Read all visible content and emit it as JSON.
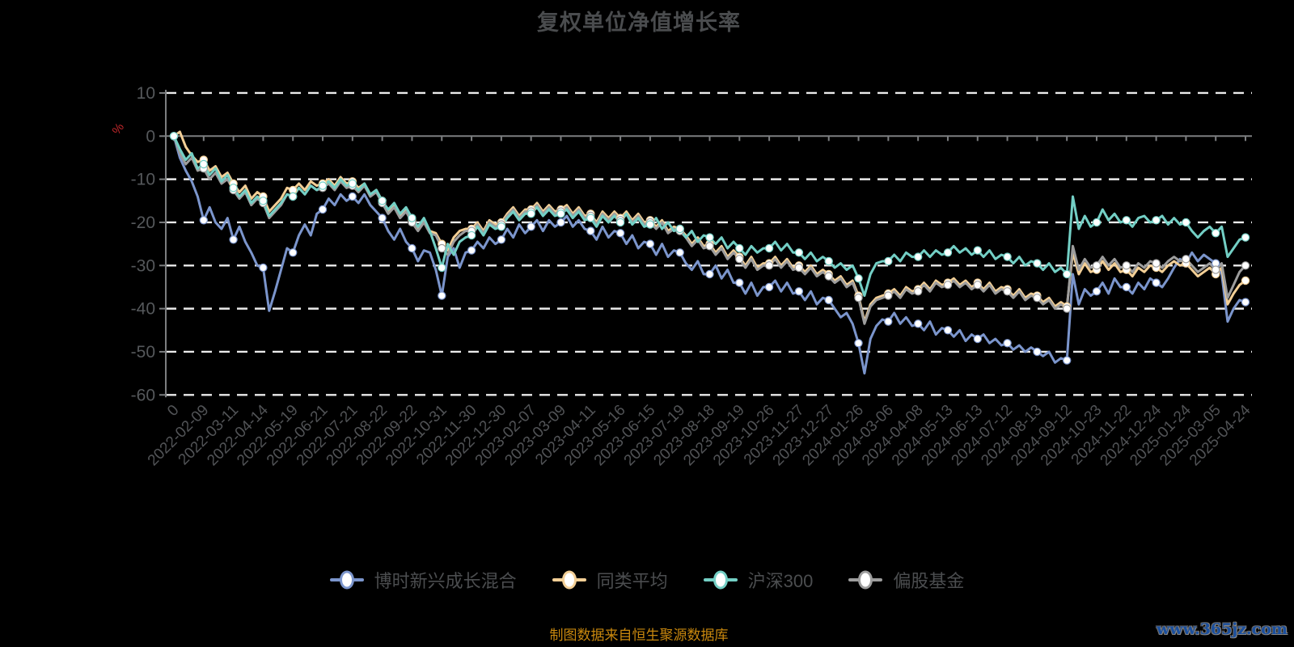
{
  "title": "复权单位净值增长率",
  "footer": {
    "source_note": "制图数据来自恒生聚源数据库",
    "watermark": "www.365jz.com"
  },
  "chart_data": {
    "type": "line",
    "title": "复权单位净值增长率",
    "xlabel": "",
    "ylabel": "%",
    "ylabel_color": "#c0272b",
    "ylim": [
      -60,
      10
    ],
    "y_ticks": [
      10,
      0,
      -10,
      -20,
      -30,
      -40,
      -50,
      -60
    ],
    "grid": "dashed-horizontal-white",
    "legend_position": "bottom",
    "background": "#000000",
    "x_labels": [
      "0",
      "2022-02-09",
      "2022-03-11",
      "2022-04-14",
      "2022-05-19",
      "2022-06-21",
      "2022-07-21",
      "2022-08-22",
      "2022-09-22",
      "2022-10-31",
      "2022-11-30",
      "2022-12-30",
      "2023-02-07",
      "2023-03-09",
      "2023-04-11",
      "2023-05-16",
      "2023-06-15",
      "2023-07-19",
      "2023-08-18",
      "2023-09-19",
      "2023-10-26",
      "2023-11-27",
      "2023-12-27",
      "2024-01-26",
      "2024-03-06",
      "2024-04-08",
      "2024-05-13",
      "2024-06-13",
      "2024-07-12",
      "2024-08-13",
      "2024-09-12",
      "2024-10-23",
      "2024-11-22",
      "2024-12-24",
      "2025-01-24",
      "2025-03-05",
      "2025-04-24"
    ],
    "t_step": 0.2,
    "marker_every": 5,
    "series": [
      {
        "key": "fund",
        "name": "博时新兴成长混合",
        "color": "#7b95cc",
        "values": [
          0,
          -5,
          -8,
          -10.5,
          -14,
          -19.5,
          -16.5,
          -20,
          -21.5,
          -19,
          -24,
          -21,
          -24.5,
          -27,
          -30,
          -30.5,
          -40.5,
          -36,
          -31,
          -26,
          -27,
          -23,
          -20.5,
          -23,
          -18,
          -17,
          -14.5,
          -16,
          -13.5,
          -15,
          -14,
          -15.5,
          -13.5,
          -16,
          -17.5,
          -19,
          -22,
          -24,
          -21.5,
          -24.5,
          -26,
          -29,
          -26.5,
          -27,
          -31,
          -37,
          -28,
          -26,
          -30.5,
          -27,
          -26.5,
          -24.5,
          -26,
          -23.5,
          -25,
          -24,
          -21.5,
          -23.5,
          -20.5,
          -22.5,
          -21,
          -19.5,
          -22,
          -19.5,
          -21,
          -20,
          -18.5,
          -21,
          -19.5,
          -21.5,
          -22,
          -24,
          -21,
          -23.5,
          -22,
          -22.5,
          -25,
          -23,
          -26,
          -24.5,
          -25,
          -27.5,
          -25,
          -28,
          -26.5,
          -27,
          -29.5,
          -31,
          -29,
          -32,
          -32,
          -30,
          -33,
          -31,
          -34,
          -34,
          -36.5,
          -34,
          -37,
          -35,
          -35,
          -33.5,
          -36,
          -34,
          -36.5,
          -36,
          -38,
          -36,
          -39,
          -37.5,
          -38,
          -40,
          -42,
          -41,
          -43.5,
          -48,
          -55,
          -47,
          -44,
          -42.5,
          -43,
          -41,
          -43.5,
          -42,
          -44,
          -43.5,
          -45,
          -43,
          -46,
          -44.5,
          -45,
          -46.5,
          -45,
          -47.5,
          -46,
          -47,
          -46,
          -48,
          -47,
          -48.5,
          -48,
          -49.5,
          -48.5,
          -50,
          -49,
          -50,
          -51,
          -50,
          -52.5,
          -51.5,
          -52,
          -32,
          -39,
          -35.5,
          -37,
          -36,
          -34,
          -36.5,
          -33,
          -35,
          -35,
          -36.5,
          -34,
          -35.5,
          -33,
          -34,
          -35,
          -33,
          -30.5,
          -28.5,
          -29.5,
          -27,
          -29,
          -27.5,
          -28.5,
          -29.5,
          -32,
          -43,
          -40,
          -38,
          -38.5
        ]
      },
      {
        "key": "peer-average",
        "name": "同类平均",
        "color": "#f3cf96",
        "values": [
          0,
          1,
          -2.5,
          -4.5,
          -6,
          -5.5,
          -8,
          -7,
          -9.5,
          -8.5,
          -11,
          -13,
          -11.5,
          -14.5,
          -13,
          -14,
          -17.5,
          -16,
          -14.5,
          -12,
          -12.5,
          -11,
          -12.5,
          -10.5,
          -11.5,
          -11,
          -10,
          -11.5,
          -9.5,
          -11,
          -10.5,
          -12,
          -11,
          -13.5,
          -12.5,
          -15,
          -17.5,
          -16,
          -18.5,
          -17,
          -19.5,
          -21.5,
          -19.5,
          -22,
          -22.5,
          -25,
          -26.5,
          -23.5,
          -22,
          -21.5,
          -21.5,
          -20,
          -22,
          -19.5,
          -20.5,
          -20,
          -18,
          -16.5,
          -18.5,
          -17,
          -17,
          -15.5,
          -17.5,
          -16,
          -17.5,
          -17,
          -16,
          -18,
          -16.5,
          -18.5,
          -18,
          -20,
          -17.5,
          -19,
          -17.5,
          -19,
          -17.5,
          -19.5,
          -18,
          -20,
          -19.5,
          -21,
          -19.5,
          -22,
          -21,
          -21.5,
          -23,
          -25,
          -23.5,
          -25.5,
          -25,
          -27,
          -25.5,
          -28,
          -26.5,
          -28,
          -30,
          -28,
          -30.5,
          -29.5,
          -29.5,
          -28,
          -30,
          -28.5,
          -30.5,
          -30,
          -31.5,
          -30,
          -32,
          -31,
          -32,
          -33.5,
          -32.5,
          -34.5,
          -33.5,
          -37,
          -43,
          -39,
          -37.5,
          -37,
          -36.5,
          -35.5,
          -37,
          -35,
          -36,
          -35.5,
          -34,
          -35.5,
          -33.5,
          -34.5,
          -34,
          -33,
          -34.5,
          -33.5,
          -35,
          -34,
          -35.5,
          -34,
          -36,
          -35,
          -35.5,
          -37,
          -35.5,
          -37.5,
          -36.5,
          -37,
          -38.5,
          -37.5,
          -39.5,
          -38.5,
          -39.5,
          -27,
          -32,
          -29.5,
          -31.5,
          -31,
          -29,
          -31,
          -29.5,
          -31.5,
          -31,
          -32.5,
          -30.5,
          -31.5,
          -30,
          -30.5,
          -31.5,
          -30,
          -29,
          -30,
          -29.5,
          -31,
          -32.5,
          -31.5,
          -30.5,
          -32,
          -30.5,
          -39,
          -36.5,
          -34.5,
          -33.5
        ]
      },
      {
        "key": "hs300",
        "name": "沪深300",
        "color": "#73cfc5",
        "values": [
          0,
          -3,
          -5.5,
          -4,
          -7.5,
          -6.5,
          -9,
          -7.5,
          -10.5,
          -9,
          -12,
          -14,
          -12.5,
          -15.5,
          -14,
          -15,
          -18.5,
          -17,
          -15.5,
          -13.5,
          -14,
          -12,
          -13.5,
          -11.5,
          -12.5,
          -11.5,
          -10.5,
          -12,
          -10,
          -11.5,
          -11,
          -12.5,
          -11,
          -13.5,
          -12.5,
          -15,
          -17,
          -15.5,
          -18,
          -16.5,
          -19,
          -21,
          -19,
          -22,
          -26,
          -30.5,
          -25,
          -27.5,
          -24.5,
          -23.5,
          -23,
          -21,
          -23,
          -20.5,
          -21.5,
          -21,
          -19,
          -17.5,
          -19.5,
          -18,
          -18,
          -16.5,
          -18.5,
          -17,
          -18.5,
          -18,
          -17,
          -19,
          -17.5,
          -19.5,
          -19,
          -21,
          -18.5,
          -20,
          -18.5,
          -20,
          -18,
          -20.5,
          -19,
          -21,
          -20.5,
          -19,
          -21.5,
          -20,
          -22,
          -21.5,
          -23.5,
          -22,
          -24.5,
          -23,
          -23.5,
          -25,
          -23.5,
          -26,
          -24.5,
          -26,
          -27.5,
          -25.5,
          -27,
          -26,
          -26,
          -24.5,
          -26.5,
          -25,
          -27,
          -27,
          -28.5,
          -27,
          -29,
          -28,
          -29,
          -30.5,
          -29.5,
          -31,
          -30,
          -33,
          -37,
          -32,
          -29.5,
          -29,
          -29,
          -27.5,
          -29,
          -27,
          -28,
          -28,
          -26.5,
          -28,
          -26.5,
          -27.5,
          -27,
          -25.5,
          -27,
          -26,
          -27.5,
          -26.5,
          -28,
          -26.5,
          -28.5,
          -27.5,
          -28,
          -29.5,
          -28,
          -30,
          -29,
          -29.5,
          -31,
          -29.5,
          -31.5,
          -30.5,
          -32,
          -14,
          -21.5,
          -18.5,
          -21,
          -20,
          -17,
          -19.5,
          -18,
          -20,
          -19.5,
          -21,
          -19,
          -18.5,
          -20,
          -19.5,
          -18.5,
          -20.5,
          -19,
          -20.5,
          -20,
          -22,
          -23.5,
          -22,
          -21,
          -22.5,
          -21,
          -28,
          -26,
          -24,
          -23.5
        ]
      },
      {
        "key": "equity-fund",
        "name": "偏股基金",
        "color": "#9d9d9d",
        "values": [
          0,
          -4,
          -6.5,
          -5,
          -8,
          -7.5,
          -10,
          -8.5,
          -11,
          -10,
          -12.5,
          -14.5,
          -13,
          -16,
          -14.5,
          -15.5,
          -19,
          -17.5,
          -16,
          -13.5,
          -14,
          -12,
          -13.5,
          -11.5,
          -12.5,
          -12,
          -11,
          -12.5,
          -10.5,
          -12,
          -11.5,
          -13,
          -11.5,
          -14,
          -13,
          -15.5,
          -18,
          -16.5,
          -19,
          -17.5,
          -20,
          -22,
          -20,
          -22.5,
          -23,
          -26,
          -27.5,
          -24.5,
          -23,
          -22,
          -22,
          -20.5,
          -22.5,
          -20,
          -21,
          -20.5,
          -18.5,
          -17,
          -19,
          -17.5,
          -17.5,
          -16,
          -18,
          -16.5,
          -18,
          -17.5,
          -16.5,
          -18.5,
          -17,
          -19,
          -18.5,
          -20.5,
          -18,
          -19.5,
          -18,
          -19.5,
          -18,
          -20,
          -18.5,
          -20.5,
          -20,
          -21.5,
          -20,
          -22.5,
          -21.5,
          -22,
          -23.5,
          -25.5,
          -24,
          -26,
          -25.5,
          -27.5,
          -26,
          -28.5,
          -27,
          -28.5,
          -30.5,
          -28.5,
          -31,
          -30,
          -30,
          -28.5,
          -30.5,
          -29,
          -31,
          -30.5,
          -32,
          -30.5,
          -32.5,
          -31.5,
          -32.5,
          -34,
          -33,
          -35,
          -34,
          -37.5,
          -43.5,
          -39.5,
          -38,
          -37.5,
          -37,
          -36,
          -37.5,
          -35.5,
          -36.5,
          -36,
          -34.5,
          -36,
          -34,
          -35,
          -34.5,
          -33.5,
          -35,
          -34,
          -35.5,
          -34.5,
          -36,
          -34.5,
          -36.5,
          -35.5,
          -36,
          -37.5,
          -36,
          -38,
          -37,
          -37.5,
          -39,
          -38,
          -40,
          -39,
          -40,
          -25.5,
          -31,
          -28.5,
          -30.5,
          -30,
          -28,
          -30,
          -28.5,
          -30.5,
          -30,
          -31.5,
          -29.5,
          -30.5,
          -29,
          -29.5,
          -30.5,
          -29,
          -28,
          -29,
          -28.5,
          -30,
          -31.5,
          -30.5,
          -29.5,
          -31,
          -29.5,
          -37.5,
          -34.5,
          -31.5,
          -30
        ]
      }
    ]
  }
}
